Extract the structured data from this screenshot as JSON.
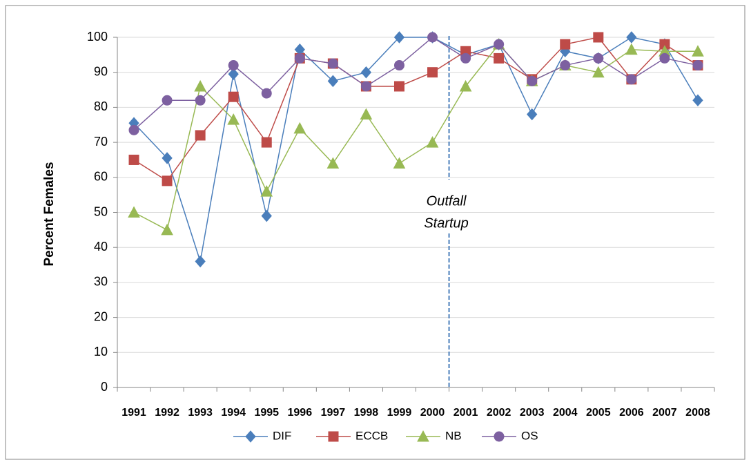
{
  "chart_data": {
    "type": "line",
    "y_label": "Percent Females",
    "categories": [
      "1991",
      "1992",
      "1993",
      "1994",
      "1995",
      "1996",
      "1997",
      "1998",
      "1999",
      "2000",
      "2001",
      "2002",
      "2003",
      "2004",
      "2005",
      "2006",
      "2007",
      "2008"
    ],
    "series": [
      {
        "name": "DIF",
        "color": "#4a7ebb",
        "marker": "diamond",
        "values": [
          75.5,
          65.5,
          36,
          89.5,
          49,
          96.5,
          87.5,
          90,
          100,
          100,
          95,
          98,
          78,
          96,
          94,
          100,
          98,
          82
        ]
      },
      {
        "name": "ECCB",
        "color": "#be4b48",
        "marker": "square",
        "values": [
          65,
          59,
          72,
          83,
          70,
          94,
          92.5,
          86,
          86,
          90,
          96,
          94,
          88,
          98,
          100,
          88,
          98,
          92
        ]
      },
      {
        "name": "NB",
        "color": "#98b954",
        "marker": "triangle",
        "values": [
          50,
          45,
          86,
          76.5,
          56,
          74,
          64,
          78,
          64,
          70,
          86,
          98,
          87.5,
          92,
          90,
          96.5,
          96,
          96
        ]
      },
      {
        "name": "OS",
        "color": "#7d60a0",
        "marker": "circle",
        "values": [
          73.5,
          82,
          82,
          92,
          84,
          94,
          92.5,
          86,
          92,
          100,
          94,
          98,
          87.5,
          92,
          94,
          88,
          94,
          92
        ]
      }
    ],
    "annotation": [
      "Outfall",
      "Startup"
    ],
    "ylim": [
      0,
      100
    ],
    "yticks": [
      0,
      10,
      20,
      30,
      40,
      50,
      60,
      70,
      80,
      90,
      100
    ],
    "grid": true,
    "legend": "bottom"
  }
}
